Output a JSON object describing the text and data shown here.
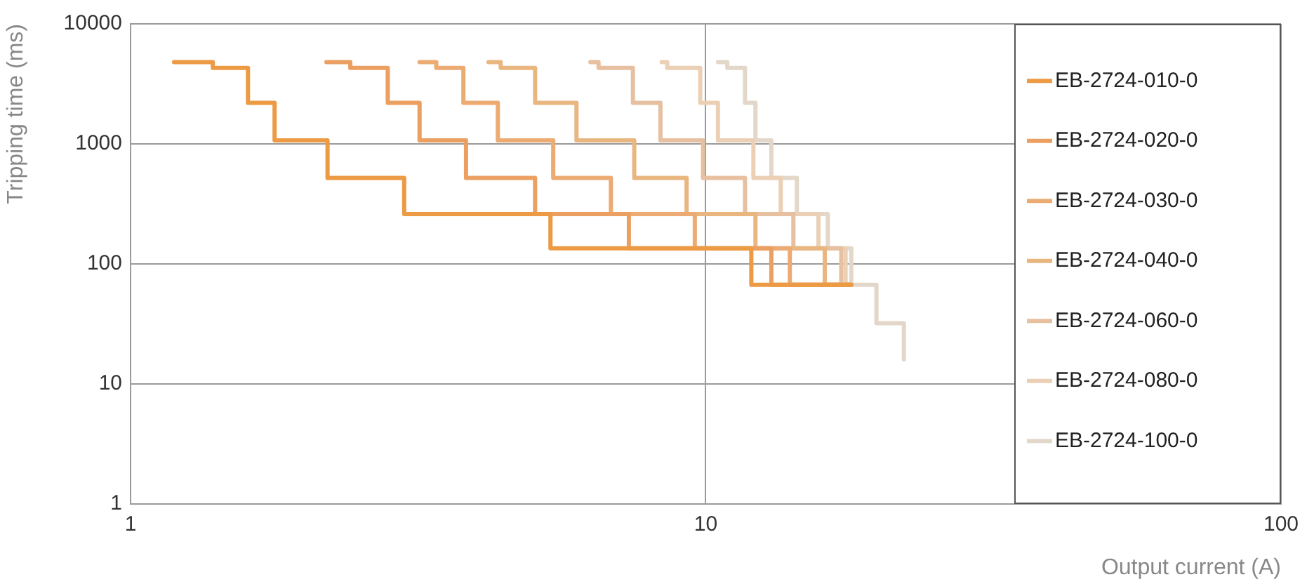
{
  "chart_data": {
    "type": "step",
    "xlabel": "Output current (A)",
    "ylabel": "Tripping time (ms)",
    "log": "xy",
    "xlim": [
      1,
      100
    ],
    "xticks": [
      1,
      10,
      100
    ],
    "ylim": [
      1,
      10000
    ],
    "yticks": [
      1,
      10,
      100,
      1000,
      10000
    ],
    "grid": true,
    "legend": "right",
    "line_style": "solid",
    "marker": "none",
    "series": [
      {
        "name": "EB-2724-010-0",
        "color": "#ec9a43",
        "x": [
          1.19,
          1.39,
          1.6,
          1.78,
          2.2,
          2.99,
          5.37,
          12,
          17.9
        ],
        "values": [
          4800,
          4300,
          2200,
          1070,
          520,
          260,
          135,
          67,
          67
        ]
      },
      {
        "name": "EB-2724-020-0",
        "color": "#eba062",
        "x": [
          2.19,
          2.41,
          2.8,
          3.18,
          3.83,
          5.05,
          7.35,
          13,
          17.9
        ],
        "values": [
          4800,
          4300,
          2200,
          1070,
          520,
          260,
          135,
          67,
          67
        ]
      },
      {
        "name": "EB-2724-030-0",
        "color": "#ecab73",
        "x": [
          3.18,
          3.4,
          3.79,
          4.35,
          5.43,
          6.84,
          9.57,
          14,
          17.9
        ],
        "values": [
          4800,
          4300,
          2200,
          1070,
          520,
          260,
          135,
          67,
          67
        ]
      },
      {
        "name": "EB-2724-040-0",
        "color": "#e9b680",
        "x": [
          4.19,
          4.4,
          5.05,
          5.96,
          7.51,
          9.26,
          12.2,
          16.1,
          17.9
        ],
        "values": [
          4800,
          4300,
          2200,
          1070,
          520,
          260,
          135,
          67,
          67
        ]
      },
      {
        "name": "EB-2724-060-0",
        "color": "#e6c0a0",
        "x": [
          6.3,
          6.51,
          7.47,
          8.34,
          9.89,
          11.7,
          14.2,
          17.2,
          17.9
        ],
        "values": [
          4800,
          4300,
          2200,
          1070,
          520,
          260,
          135,
          67,
          67
        ]
      },
      {
        "name": "EB-2724-080-0",
        "color": "#ecd0b5",
        "x": [
          8.38,
          8.57,
          9.78,
          10.5,
          12.1,
          13.5,
          15.7,
          17.5,
          17.9
        ],
        "values": [
          4800,
          4300,
          2200,
          1070,
          520,
          260,
          135,
          67,
          67
        ]
      },
      {
        "name": "EB-2724-100-0",
        "color": "#e3d7c9",
        "x": [
          10.5,
          10.9,
          11.7,
          12.2,
          13,
          14.4,
          16.3,
          17.9,
          19.8,
          22.1
        ],
        "values": [
          4800,
          4300,
          2200,
          1070,
          520,
          260,
          135,
          67,
          32,
          16
        ]
      }
    ]
  }
}
